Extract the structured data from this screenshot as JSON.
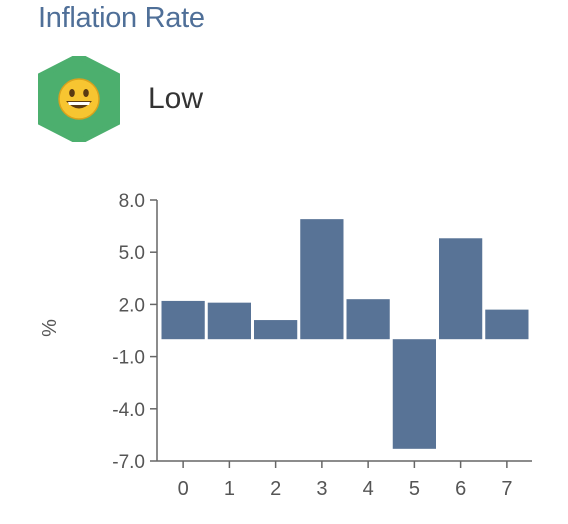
{
  "header": {
    "title": "Inflation Rate"
  },
  "status": {
    "label": "Low",
    "icon": "smiley-face-icon",
    "badge_color": "#4caf6e"
  },
  "chart_data": {
    "type": "bar",
    "title": "",
    "xlabel": "",
    "ylabel": "%",
    "categories": [
      "0",
      "1",
      "2",
      "3",
      "4",
      "5",
      "6",
      "7"
    ],
    "values": [
      2.2,
      2.1,
      1.1,
      6.9,
      2.3,
      -6.3,
      5.8,
      1.7
    ],
    "ylim": [
      -7.0,
      8.0
    ],
    "yticks": [
      "8.0",
      "5.0",
      "2.0",
      "-1.0",
      "-4.0",
      "-7.0"
    ],
    "bar_color": "#587396",
    "grid": false,
    "legend": "none"
  }
}
